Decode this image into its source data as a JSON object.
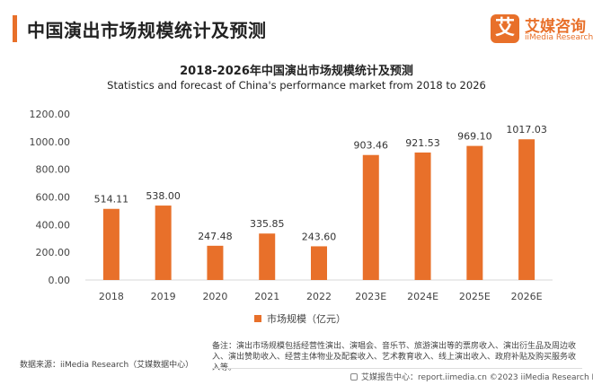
{
  "header": {
    "title": "中国演出市场规模统计及预测"
  },
  "logo": {
    "mark": "艾",
    "name_cn": "艾媒咨询",
    "name_en": "iiMedia Research"
  },
  "chart_data": {
    "type": "bar",
    "title": "2018-2026年中国演出市场规模统计及预测",
    "subtitle": "Statistics and forecast of China's performance market from 2018 to 2026",
    "categories": [
      "2018",
      "2019",
      "2020",
      "2021",
      "2022",
      "2023E",
      "2024E",
      "2025E",
      "2026E"
    ],
    "series": [
      {
        "name": "市场规模（亿元）",
        "values": [
          514.11,
          538.0,
          247.48,
          335.85,
          243.6,
          903.46,
          921.53,
          969.1,
          1017.03
        ],
        "labels": [
          "514.11",
          "538.00",
          "247.48",
          "335.85",
          "243.60",
          "903.46",
          "921.53",
          "969.10",
          "1017.03"
        ],
        "color": "#e8702a"
      }
    ],
    "y_ticks": [
      "0.00",
      "200.00",
      "400.00",
      "600.00",
      "800.00",
      "1000.00",
      "1200.00"
    ],
    "ylim": [
      0,
      1200
    ],
    "grid": false,
    "legend_position": "bottom"
  },
  "footer": {
    "source": "数据来源：iiMedia Research（艾媒数据中心）",
    "note": "备注：演出市场规模包括经营性演出、演唱会、音乐节、旅游演出等的票房收入、演出衍生品及周边收入、演出赞助收入、经营主体物业及配套收入、艺术教育收入、线上演出收入、政府补贴及购买服务收入等。",
    "copyright": "艾媒报告中心：report.iimedia.cn  ©2023  iiMedia Research  Inc"
  }
}
